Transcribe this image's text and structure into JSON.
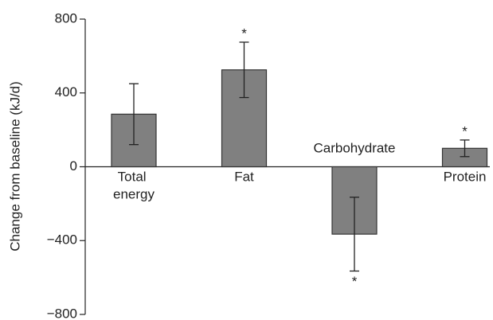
{
  "chart_data": {
    "type": "bar",
    "y_label": "Change from baseline (kJ/d)",
    "categories": [
      "Total energy",
      "Fat",
      "Carbohydrate",
      "Protein"
    ],
    "values": [
      285,
      525,
      -365,
      100
    ],
    "errors": [
      165,
      150,
      200,
      45
    ],
    "value_annotations": [
      null,
      "*",
      "*",
      "*"
    ],
    "color": "#808080",
    "ylim": [
      -800,
      800
    ],
    "yticks": [
      {
        "value": -800,
        "label": "−800"
      },
      {
        "value": -400,
        "label": "−400"
      },
      0,
      400,
      800
    ],
    "grid": false
  }
}
